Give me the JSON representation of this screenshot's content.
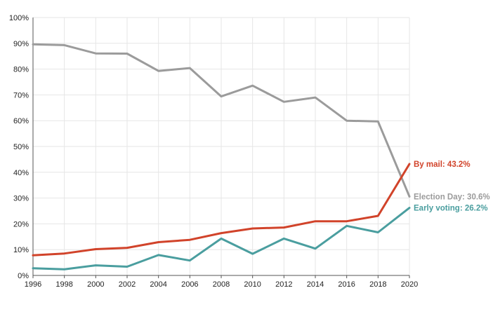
{
  "chart_data": {
    "type": "line",
    "x": [
      1996,
      1998,
      2000,
      2002,
      2004,
      2006,
      2008,
      2010,
      2012,
      2014,
      2016,
      2018,
      2020
    ],
    "x_tick_labels": [
      "1996",
      "1998",
      "2000",
      "2002",
      "2004",
      "2006",
      "2008",
      "2010",
      "2012",
      "2014",
      "2016",
      "2018",
      "2020"
    ],
    "ylim": [
      0,
      100
    ],
    "y_ticks": [
      0,
      10,
      20,
      30,
      40,
      50,
      60,
      70,
      80,
      90,
      100
    ],
    "y_tick_labels": [
      "0%",
      "10%",
      "20%",
      "30%",
      "40%",
      "50%",
      "60%",
      "70%",
      "80%",
      "90%",
      "100%"
    ],
    "grid": true,
    "series": [
      {
        "name": "Election Day",
        "color": "#9b9b9b",
        "values": [
          89.6,
          89.3,
          86.1,
          86.0,
          79.3,
          80.4,
          69.4,
          73.6,
          67.3,
          69.0,
          60.0,
          59.7,
          30.6
        ],
        "end_label": "Election Day: 30.6%"
      },
      {
        "name": "By mail",
        "color": "#d1432a",
        "values": [
          7.8,
          8.5,
          10.2,
          10.7,
          12.9,
          13.8,
          16.4,
          18.2,
          18.6,
          21.0,
          21.0,
          23.1,
          43.2
        ],
        "end_label": "By mail: 43.2%"
      },
      {
        "name": "Early voting",
        "color": "#4a9e9f",
        "values": [
          2.8,
          2.4,
          3.9,
          3.4,
          7.9,
          5.8,
          14.3,
          8.4,
          14.3,
          10.4,
          19.2,
          16.7,
          26.2
        ],
        "end_label": "Early voting: 26.2%"
      }
    ]
  }
}
